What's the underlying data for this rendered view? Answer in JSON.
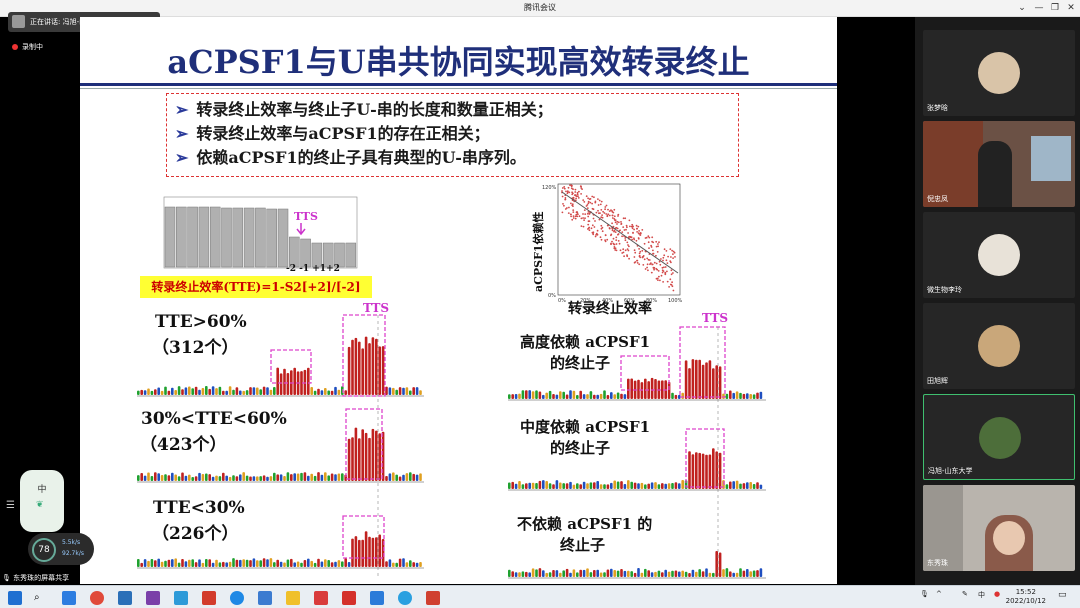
{
  "window": {
    "title": "腾讯会议"
  },
  "speaking": {
    "text": "正在讲话: 冯旭-山东大学..."
  },
  "recording": {
    "text": "录制中"
  },
  "slide": {
    "title": "aCPSF1与U串共协同实现高效转录终止",
    "bullets": [
      "转录终止效率与终止子U-串的长度和数量正相关；",
      "转录终止效率与aCPSF1的存在正相关；",
      "依赖aCPSF1的终止子具有典型的U-串序列。"
    ],
    "bar_label_tts": "TTS",
    "bar_positions": "-2 -1 +1+2",
    "formula": "转录终止效率(TTE)=1-S2[+2]/[-2]",
    "scatter": {
      "ylabel": "aCPSF1依赖性",
      "xlabel": "转录终止效率",
      "ytick_top": "120%",
      "ytick_bottom": "0%",
      "xticks": [
        "0%",
        "20%",
        "40%",
        "60%",
        "80%",
        "100%"
      ]
    },
    "left_groups": [
      {
        "label": "TTE>60%",
        "count": "（312个）"
      },
      {
        "label": "30%<TTE<60%",
        "count": "（423个）"
      },
      {
        "label": "TTE<30%",
        "count": "（226个）"
      }
    ],
    "right_groups": [
      {
        "line1": "高度依赖 aCPSF1",
        "line2": "的终止子"
      },
      {
        "line1": "中度依赖 aCPSF1",
        "line2": "的终止子"
      },
      {
        "line1": "不依赖 aCPSF1 的",
        "line2": "终止子"
      }
    ],
    "tts_labels": [
      "TTS",
      "TTS"
    ]
  },
  "participants": [
    {
      "name": "张梦晗"
    },
    {
      "name": "倪忠凤"
    },
    {
      "name": "微生物李玲"
    },
    {
      "name": "田旭辉"
    },
    {
      "name": "冯旭-山东大学"
    },
    {
      "name": "东秀珠"
    }
  ],
  "bottom_left": {
    "share": "东秀珠的屏幕共享",
    "net_percent": "78",
    "net_up": "5.5k/s",
    "net_down": "92.7k/s",
    "plugin_char": "中"
  },
  "taskbar": {
    "time": "15:52",
    "date": "2022/10/12",
    "ime": "中"
  }
}
